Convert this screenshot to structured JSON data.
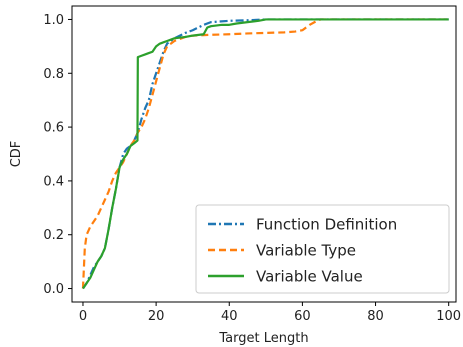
{
  "chart_data": {
    "type": "line",
    "title": "",
    "xlabel": "Target Length",
    "ylabel": "CDF",
    "xlim": [
      -3,
      102
    ],
    "ylim": [
      -0.05,
      1.05
    ],
    "xticks": [
      0,
      20,
      40,
      60,
      80,
      100
    ],
    "yticks": [
      0.0,
      0.2,
      0.4,
      0.6,
      0.8,
      1.0
    ],
    "xtick_labels": [
      "0",
      "20",
      "40",
      "60",
      "80",
      "100"
    ],
    "ytick_labels": [
      "0.0",
      "0.2",
      "0.4",
      "0.6",
      "0.8",
      "1.0"
    ],
    "grid": false,
    "legend_position": "bottom-right",
    "series": [
      {
        "name": "Function Definition",
        "color": "#1f77b4",
        "style": "dashdot",
        "x": [
          0,
          1,
          2,
          3,
          4,
          5,
          6,
          7,
          8,
          9,
          10,
          11,
          12,
          13,
          14,
          15,
          16,
          17,
          18,
          19,
          20,
          21,
          22,
          23,
          25,
          28,
          30,
          33,
          35,
          40,
          45,
          50,
          55,
          60,
          65,
          70,
          80,
          90,
          100
        ],
        "y": [
          0.0,
          0.02,
          0.05,
          0.08,
          0.1,
          0.12,
          0.15,
          0.22,
          0.3,
          0.37,
          0.45,
          0.5,
          0.52,
          0.53,
          0.55,
          0.58,
          0.63,
          0.67,
          0.7,
          0.76,
          0.8,
          0.84,
          0.88,
          0.91,
          0.93,
          0.95,
          0.96,
          0.98,
          0.99,
          0.995,
          0.997,
          1.0,
          1.0,
          1.0,
          1.0,
          1.0,
          1.0,
          1.0,
          1.0
        ]
      },
      {
        "name": "Variable Type",
        "color": "#ff7f0e",
        "style": "dashed",
        "x": [
          0,
          0.5,
          1,
          2,
          3,
          4,
          5,
          6,
          7,
          8,
          9,
          10,
          11,
          12,
          13,
          14,
          15,
          16,
          17,
          18,
          19,
          20,
          21,
          22,
          23,
          25,
          28,
          30,
          35,
          40,
          45,
          50,
          55,
          58,
          60,
          62,
          64,
          65,
          70,
          80,
          90,
          100
        ],
        "y": [
          0.0,
          0.15,
          0.2,
          0.23,
          0.25,
          0.27,
          0.3,
          0.33,
          0.36,
          0.4,
          0.43,
          0.45,
          0.47,
          0.5,
          0.53,
          0.55,
          0.58,
          0.6,
          0.63,
          0.67,
          0.72,
          0.77,
          0.82,
          0.87,
          0.9,
          0.92,
          0.935,
          0.94,
          0.943,
          0.945,
          0.948,
          0.95,
          0.952,
          0.955,
          0.96,
          0.98,
          0.995,
          1.0,
          1.0,
          1.0,
          1.0,
          1.0
        ]
      },
      {
        "name": "Variable Value",
        "color": "#2ca02c",
        "style": "solid",
        "x": [
          0,
          1,
          2,
          3,
          4,
          5,
          6,
          7,
          8,
          9,
          10,
          11,
          12,
          13,
          14,
          14.9,
          15,
          16,
          17,
          18,
          19,
          20,
          21,
          22,
          23,
          25,
          28,
          30,
          33,
          34,
          35,
          38,
          40,
          42,
          45,
          48,
          50,
          60,
          70,
          80,
          90,
          100
        ],
        "y": [
          0.0,
          0.02,
          0.04,
          0.07,
          0.1,
          0.12,
          0.15,
          0.22,
          0.3,
          0.37,
          0.45,
          0.48,
          0.5,
          0.53,
          0.54,
          0.55,
          0.86,
          0.865,
          0.87,
          0.875,
          0.88,
          0.9,
          0.91,
          0.915,
          0.92,
          0.93,
          0.935,
          0.94,
          0.945,
          0.97,
          0.975,
          0.98,
          0.98,
          0.985,
          0.99,
          0.995,
          1.0,
          1.0,
          1.0,
          1.0,
          1.0,
          1.0
        ]
      }
    ]
  }
}
